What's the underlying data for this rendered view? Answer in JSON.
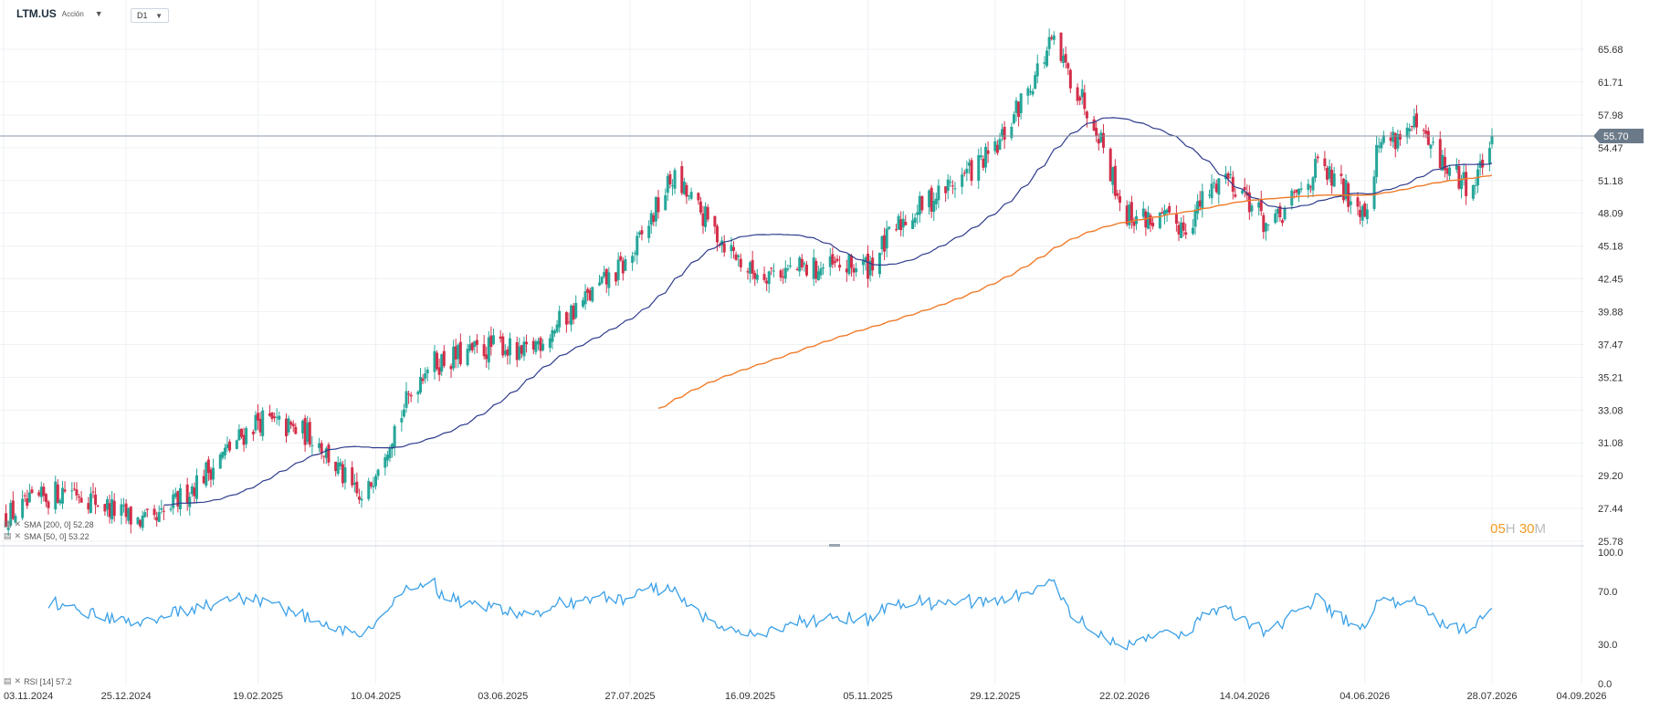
{
  "header": {
    "symbol": "LTM.US",
    "instrument_type": "Acción",
    "timeframe": "D1"
  },
  "legend": {
    "sma_slow": "SMA [200, 0] 52.28",
    "sma_fast": "SMA [50, 0] 53.22",
    "rsi": "RSI [14] 57.2"
  },
  "countdown": {
    "hours": "05",
    "h": "H",
    "minutes": "30",
    "m": "M"
  },
  "colors": {
    "up": "#26a69a",
    "down": "#d32f4a",
    "sma_fast": "#2e3b8c",
    "sma_slow": "#f07b2a",
    "rsi": "#3aa0e8",
    "last_price_bg": "#6b7a89"
  },
  "chart_data": [
    {
      "type": "candlestick",
      "title": "LTM.US",
      "x_tick_labels": [
        "03.11.2024",
        "25.12.2024",
        "19.02.2025",
        "10.04.2025",
        "03.06.2025",
        "27.07.2025",
        "16.09.2025",
        "05.11.2025",
        "29.12.2025",
        "22.02.2026",
        "14.04.2026",
        "04.06.2026",
        "28.07.2026",
        "04.09.2026"
      ],
      "y_tick_labels": [
        "65.68",
        "61.71",
        "57.98",
        "54.47",
        "51.18",
        "48.09",
        "45.18",
        "42.45",
        "39.88",
        "37.47",
        "35.21",
        "33.08",
        "31.08",
        "29.20",
        "27.44",
        "25.78"
      ],
      "ylim": [
        25.78,
        65.68
      ],
      "y_scale": "log",
      "last_price": 55.7,
      "anchors": [
        {
          "date": "03.11.2024",
          "close": 27.0
        },
        {
          "date": "01.12.2024",
          "close": 28.6
        },
        {
          "date": "25.12.2024",
          "close": 27.0
        },
        {
          "date": "06.01.2025",
          "close": 26.6
        },
        {
          "date": "19.02.2025",
          "close": 32.5
        },
        {
          "date": "15.03.2025",
          "close": 31.5
        },
        {
          "date": "05.04.2025",
          "close": 27.5
        },
        {
          "date": "10.04.2025",
          "close": 29.8
        },
        {
          "date": "01.05.2025",
          "close": 36.0
        },
        {
          "date": "03.06.2025",
          "close": 37.5
        },
        {
          "date": "10.06.2025",
          "close": 36.5
        },
        {
          "date": "27.07.2025",
          "close": 44.0
        },
        {
          "date": "14.08.2025",
          "close": 51.5
        },
        {
          "date": "01.09.2025",
          "close": 46.5
        },
        {
          "date": "16.09.2025",
          "close": 43.0
        },
        {
          "date": "05.11.2025",
          "close": 43.5
        },
        {
          "date": "20.11.2025",
          "close": 47.5
        },
        {
          "date": "29.12.2025",
          "close": 54.0
        },
        {
          "date": "22.01.2026",
          "close": 66.5
        },
        {
          "date": "10.02.2026",
          "close": 57.0
        },
        {
          "date": "22.02.2026",
          "close": 48.0
        },
        {
          "date": "20.03.2026",
          "close": 47.0
        },
        {
          "date": "05.04.2026",
          "close": 52.0
        },
        {
          "date": "14.04.2026",
          "close": 50.0
        },
        {
          "date": "25.04.2026",
          "close": 46.5
        },
        {
          "date": "15.05.2026",
          "close": 52.5
        },
        {
          "date": "04.06.2026",
          "close": 48.5
        },
        {
          "date": "10.06.2026",
          "close": 55.0
        },
        {
          "date": "25.06.2026",
          "close": 56.5
        },
        {
          "date": "10.07.2026",
          "close": 52.0
        },
        {
          "date": "20.07.2026",
          "close": 50.5
        },
        {
          "date": "28.07.2026",
          "close": 55.7
        }
      ],
      "series": [
        {
          "name": "SMA [50, 0] 53.22",
          "last": 53.22
        },
        {
          "name": "SMA [200, 0] 52.28",
          "last": 52.28
        }
      ]
    },
    {
      "type": "line",
      "title": "RSI [14] 57.2",
      "y_tick_labels": [
        "100.0",
        "70.0",
        "30.0",
        "0.0"
      ],
      "ylim": [
        0,
        100
      ],
      "last": 57.2
    }
  ]
}
